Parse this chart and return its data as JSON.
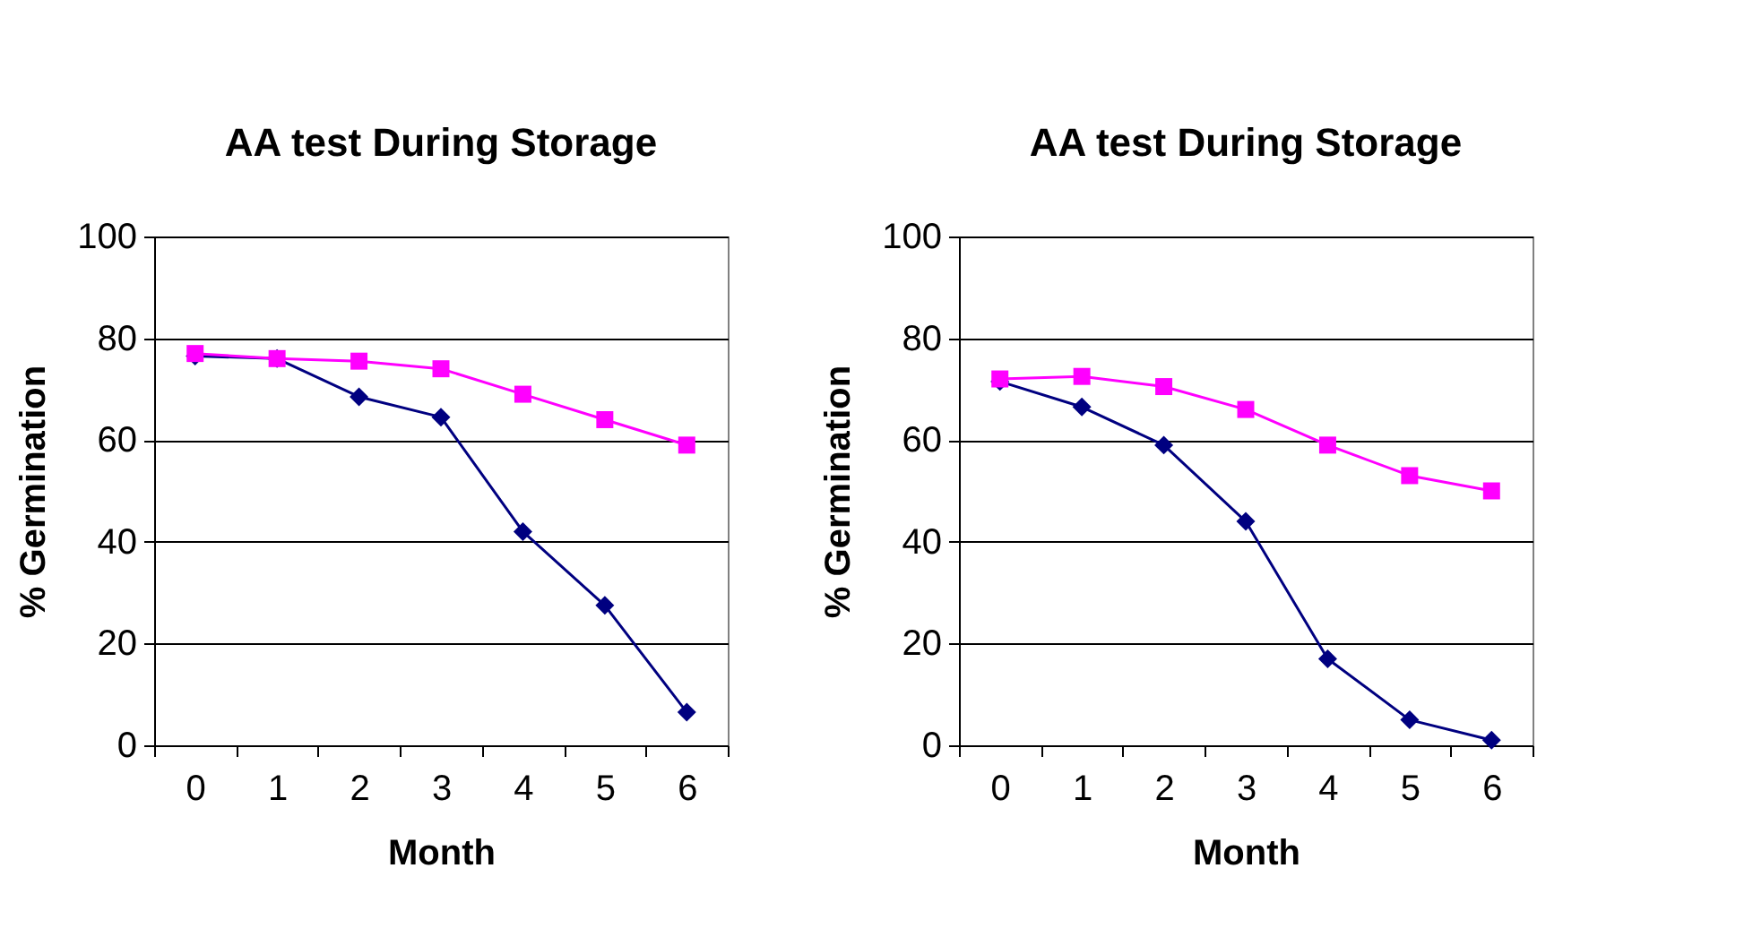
{
  "chart_data": [
    {
      "type": "line",
      "title": "AA test During Storage",
      "xlabel": "Month",
      "ylabel": "% Germination",
      "categories": [
        "0",
        "1",
        "2",
        "3",
        "4",
        "5",
        "6"
      ],
      "ylim": [
        0,
        100
      ],
      "yticks": [
        0,
        20,
        40,
        60,
        80,
        100
      ],
      "grid": "y",
      "series": [
        {
          "color": "#000080",
          "marker": "diamond",
          "values": [
            76.5,
            76,
            68.5,
            64.5,
            42,
            27.5,
            6.5
          ]
        },
        {
          "color": "#ff00ff",
          "marker": "square",
          "values": [
            77,
            76,
            75.5,
            74,
            69,
            64,
            59
          ]
        }
      ]
    },
    {
      "type": "line",
      "title": "AA test During Storage",
      "xlabel": "Month",
      "ylabel": "% Germination",
      "categories": [
        "0",
        "1",
        "2",
        "3",
        "4",
        "5",
        "6"
      ],
      "ylim": [
        0,
        100
      ],
      "yticks": [
        0,
        20,
        40,
        60,
        80,
        100
      ],
      "grid": "y",
      "series": [
        {
          "color": "#000080",
          "marker": "diamond",
          "values": [
            71.5,
            66.5,
            59,
            44,
            17,
            5,
            1
          ]
        },
        {
          "color": "#ff00ff",
          "marker": "square",
          "values": [
            72,
            72.5,
            70.5,
            66,
            59,
            53,
            50
          ]
        }
      ]
    }
  ]
}
